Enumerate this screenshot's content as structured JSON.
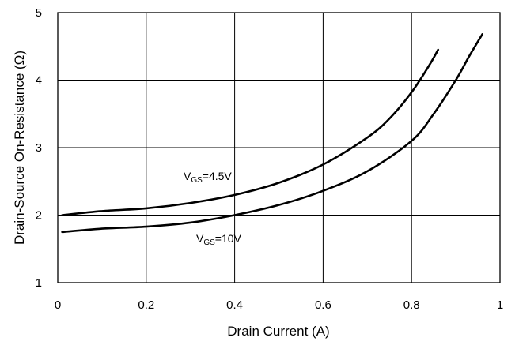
{
  "chart_data": {
    "type": "line",
    "title": "",
    "xlabel": "Drain Current (A)",
    "ylabel": "Drain-Source On-Resistance (Ω)",
    "xlim": [
      0,
      1
    ],
    "ylim": [
      1,
      5
    ],
    "x_ticks": [
      "0",
      "0.2",
      "0.4",
      "0.6",
      "0.8",
      "1"
    ],
    "y_ticks": [
      "1",
      "2",
      "3",
      "4",
      "5"
    ],
    "grid": true,
    "legend": "none",
    "series": [
      {
        "label_main": "V",
        "label_sub": "GS",
        "label_rest": "=4.5V",
        "color": "#000000",
        "x": [
          0.01,
          0.1,
          0.2,
          0.3,
          0.4,
          0.5,
          0.6,
          0.7,
          0.75,
          0.8,
          0.84,
          0.86
        ],
        "y": [
          2.0,
          2.06,
          2.1,
          2.18,
          2.3,
          2.48,
          2.75,
          3.15,
          3.43,
          3.82,
          4.22,
          4.45
        ]
      },
      {
        "label_main": "V",
        "label_sub": "GS",
        "label_rest": "=10V",
        "color": "#000000",
        "x": [
          0.01,
          0.1,
          0.2,
          0.3,
          0.4,
          0.5,
          0.6,
          0.7,
          0.8,
          0.85,
          0.9,
          0.93,
          0.96
        ],
        "y": [
          1.75,
          1.8,
          1.83,
          1.89,
          2.0,
          2.15,
          2.36,
          2.65,
          3.1,
          3.5,
          4.0,
          4.35,
          4.68
        ]
      }
    ]
  }
}
